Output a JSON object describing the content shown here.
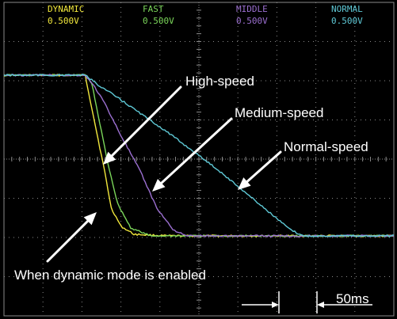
{
  "chart_data": {
    "type": "line",
    "x_unit": "ms",
    "grid": true,
    "background": "#000000",
    "grid_color": "#8a8a8a",
    "annotation_color": "#ffffff",
    "channels": [
      {
        "name": "DYNAMIC",
        "scale": "0.500V",
        "color": "#f2e83c"
      },
      {
        "name": "FAST",
        "scale": "0.500V",
        "color": "#7bd65a"
      },
      {
        "name": "MIDDLE",
        "scale": "0.500V",
        "color": "#9b6fd0"
      },
      {
        "name": "NORMAL",
        "scale": "0.500V",
        "color": "#5fc9d6"
      }
    ],
    "series": [
      {
        "name": "DYNAMIC",
        "color": "#f2e83c",
        "x": [
          0,
          50,
          55,
          62,
          66,
          72,
          80,
          100,
          240
        ],
        "y": [
          2.0,
          2.0,
          1.5,
          0.8,
          0.35,
          0.12,
          0.02,
          0.0,
          0.0
        ]
      },
      {
        "name": "FAST",
        "color": "#7bd65a",
        "x": [
          0,
          50,
          54,
          57,
          64,
          70,
          78,
          90,
          240
        ],
        "y": [
          2.0,
          2.0,
          1.9,
          1.6,
          0.9,
          0.4,
          0.1,
          0.0,
          0.0
        ]
      },
      {
        "name": "MIDDLE",
        "color": "#9b6fd0",
        "x": [
          0,
          50,
          56,
          62,
          72,
          84,
          94,
          104,
          112,
          240
        ],
        "y": [
          2.0,
          2.0,
          1.85,
          1.65,
          1.25,
          0.8,
          0.35,
          0.08,
          0.0,
          0.0
        ]
      },
      {
        "name": "NORMAL",
        "color": "#5fc9d6",
        "x": [
          0,
          50,
          58,
          70,
          100,
          130,
          160,
          176,
          184,
          240
        ],
        "y": [
          2.0,
          2.0,
          1.88,
          1.72,
          1.3,
          0.85,
          0.35,
          0.08,
          0.0,
          0.0
        ]
      }
    ],
    "annotations": [
      {
        "text": "High-speed"
      },
      {
        "text": "Medium-speed"
      },
      {
        "text": "Normal-speed"
      },
      {
        "text": "When dynamic mode is enabled"
      }
    ],
    "time_scale_label": "50ms"
  }
}
